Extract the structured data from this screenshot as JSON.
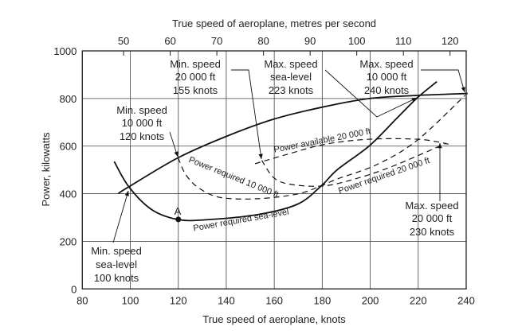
{
  "chart_data": {
    "type": "line",
    "xlabel": "True speed of aeroplane, knots",
    "x2label": "True speed of aeroplane, metres per second",
    "ylabel": "Power, kilowatts",
    "xlim": [
      80,
      240
    ],
    "ylim": [
      0,
      1000
    ],
    "x2lim_mps": [
      41.2,
      123.5
    ],
    "grid": true,
    "x_ticks": [
      80,
      100,
      120,
      140,
      160,
      180,
      200,
      220,
      240
    ],
    "y_ticks": [
      0,
      200,
      400,
      600,
      800,
      1000
    ],
    "x2_ticks": [
      50,
      60,
      70,
      80,
      90,
      100,
      110,
      120
    ],
    "series": [
      {
        "style": "solid",
        "x": [
          95,
          99.4,
          119.9,
          139.8,
          159.7,
          179.7,
          199.6,
          219.5,
          240.6
        ],
        "y": [
          401,
          429,
          551,
          640,
          713,
          763,
          800,
          813,
          821
        ]
      },
      {
        "name": "Power required sea-level",
        "style": "solid",
        "x": [
          93.3,
          99.4,
          108.8,
          119.6,
          130.9,
          153,
          169.7,
          179.7,
          186.3,
          199.6,
          210.7,
          219.5,
          227.8
        ],
        "y": [
          535,
          429,
          334,
          292,
          290,
          312,
          356,
          434,
          501,
          601,
          713,
          802,
          871
        ]
      },
      {
        "name": "Power required 10 000 ft",
        "style": "dashed",
        "x": [
          119.9,
          123.2,
          128.7,
          137.6,
          153.1,
          169.7,
          179.7,
          186.3,
          202.9,
          219.5,
          239.5
        ],
        "y": [
          551,
          479,
          423,
          384,
          379,
          399,
          434,
          462,
          523,
          624,
          813
        ]
      },
      {
        "name": "Power required 20 000 ft",
        "style": "dashed",
        "x": [
          154.8,
          159.7,
          166.4,
          179.7,
          191.9,
          208.5,
          231.7
        ],
        "y": [
          540,
          468,
          440,
          432,
          457,
          512,
          612
        ]
      },
      {
        "name": "Power available 20 000 ft",
        "style": "dashed",
        "x": [
          152,
          164.2,
          180.8,
          199.6,
          219.5,
          229.5,
          232.8
        ],
        "y": [
          526,
          562,
          607,
          629,
          629,
          615,
          607
        ]
      }
    ],
    "points": [
      {
        "label": "A",
        "x": 120,
        "y": 292
      }
    ],
    "annotations": {
      "min20": [
        "Min. speed",
        "20 000 ft",
        "155 knots"
      ],
      "maxsl": [
        "Max. speed",
        "sea-level",
        "223 knots"
      ],
      "max10": [
        "Max. speed",
        "10 000 ft",
        "240 knots"
      ],
      "min10": [
        "Min. speed",
        "10 000 ft",
        "120 knots"
      ],
      "minsl": [
        "Min. speed",
        "sea-level",
        "100 knots"
      ],
      "max20": [
        "Max. speed",
        "20 000 ft",
        "230 knots"
      ]
    }
  }
}
